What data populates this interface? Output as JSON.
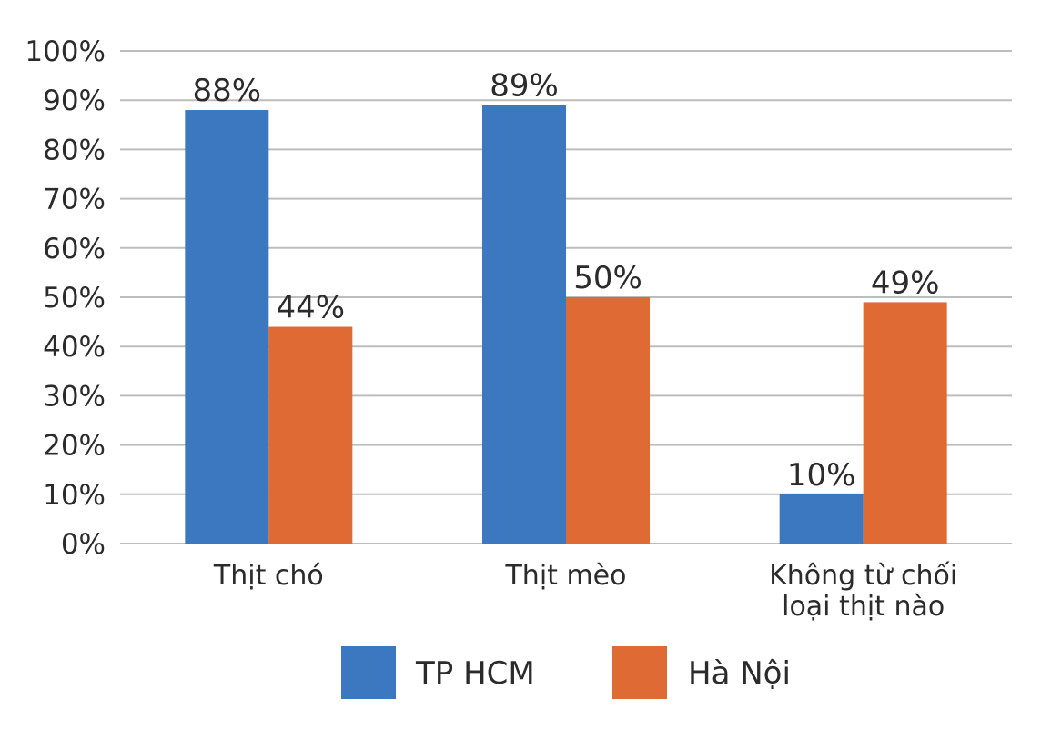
{
  "chart_data": {
    "type": "bar",
    "categories": [
      [
        "Thịt chó"
      ],
      [
        "Thịt mèo"
      ],
      [
        "Không từ chối",
        "loại thịt nào"
      ]
    ],
    "series": [
      {
        "name": "TP HCM",
        "color": "#3c78bf",
        "values": [
          88,
          89,
          10
        ],
        "labels": [
          "88%",
          "89%",
          "10%"
        ]
      },
      {
        "name": "Hà Nội",
        "color": "#e06a34",
        "values": [
          44,
          50,
          49
        ],
        "labels": [
          "44%",
          "50%",
          "49%"
        ]
      }
    ],
    "y_ticks": [
      "0%",
      "10%",
      "20%",
      "30%",
      "40%",
      "50%",
      "60%",
      "70%",
      "80%",
      "90%",
      "100%"
    ],
    "ylim": [
      0,
      100
    ],
    "grid": true,
    "legend_position": "bottom"
  }
}
